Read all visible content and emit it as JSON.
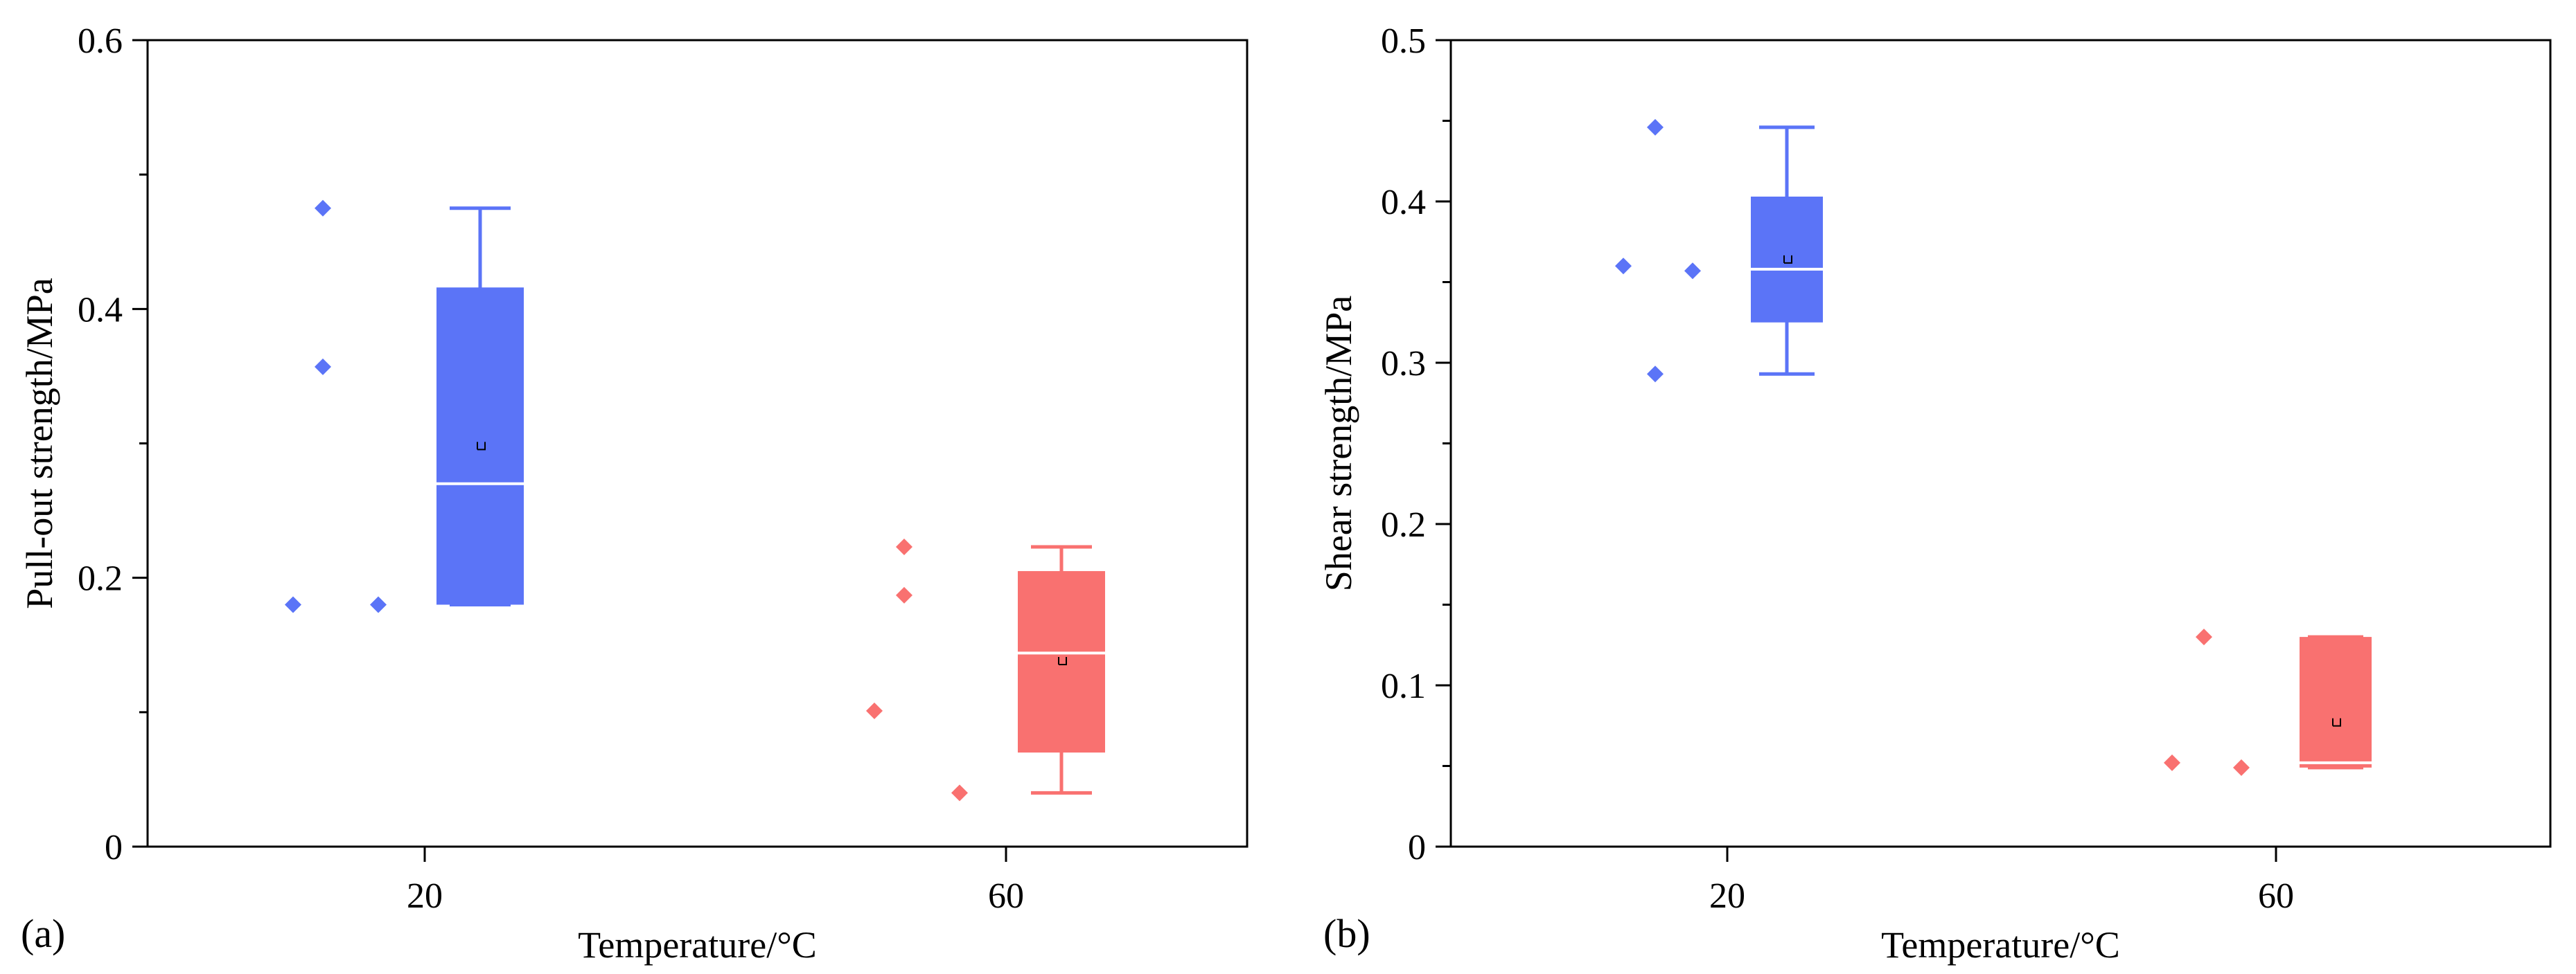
{
  "colors": {
    "blue": "#5B74F7",
    "red": "#F97170",
    "axis": "#000000",
    "median": "#ffffff"
  },
  "chart_data": [
    {
      "type": "box",
      "panel_label": "(a)",
      "xlabel": "Temperature/°C",
      "ylabel": "Pull-out strength/MPa",
      "categories": [
        "20",
        "60"
      ],
      "ylim": [
        0,
        0.6
      ],
      "yticks": [
        0,
        0.2,
        0.4,
        0.6
      ],
      "ytick_labels": [
        "0",
        "0.2",
        "0.4",
        "0.6"
      ],
      "grid": false,
      "groups": [
        {
          "category": "20",
          "color": "#5B74F7",
          "points": [
            0.475,
            0.357,
            0.18,
            0.18
          ],
          "q1": 0.18,
          "median": 0.27,
          "mean": 0.298,
          "q3": 0.416,
          "whisker_low": 0.18,
          "whisker_high": 0.475
        },
        {
          "category": "60",
          "color": "#F97170",
          "points": [
            0.223,
            0.187,
            0.101,
            0.04
          ],
          "q1": 0.07,
          "median": 0.144,
          "mean": 0.138,
          "q3": 0.205,
          "whisker_low": 0.04,
          "whisker_high": 0.223
        }
      ]
    },
    {
      "type": "box",
      "panel_label": "(b)",
      "xlabel": "Temperature/°C",
      "ylabel": "Shear strength/MPa",
      "categories": [
        "20",
        "60"
      ],
      "ylim": [
        0,
        0.5
      ],
      "yticks": [
        0,
        0.1,
        0.2,
        0.3,
        0.4,
        0.5
      ],
      "ytick_labels": [
        "0",
        "0.1",
        "0.2",
        "0.3",
        "0.4",
        "0.5"
      ],
      "grid": false,
      "groups": [
        {
          "category": "20",
          "color": "#5B74F7",
          "points": [
            0.446,
            0.36,
            0.357,
            0.293
          ],
          "q1": 0.325,
          "median": 0.358,
          "mean": 0.364,
          "q3": 0.403,
          "whisker_low": 0.293,
          "whisker_high": 0.446
        },
        {
          "category": "60",
          "color": "#F97170",
          "points": [
            0.13,
            0.052,
            0.049
          ],
          "q1": 0.049,
          "median": 0.052,
          "mean": 0.077,
          "q3": 0.13,
          "whisker_low": 0.049,
          "whisker_high": 0.13
        }
      ]
    }
  ]
}
